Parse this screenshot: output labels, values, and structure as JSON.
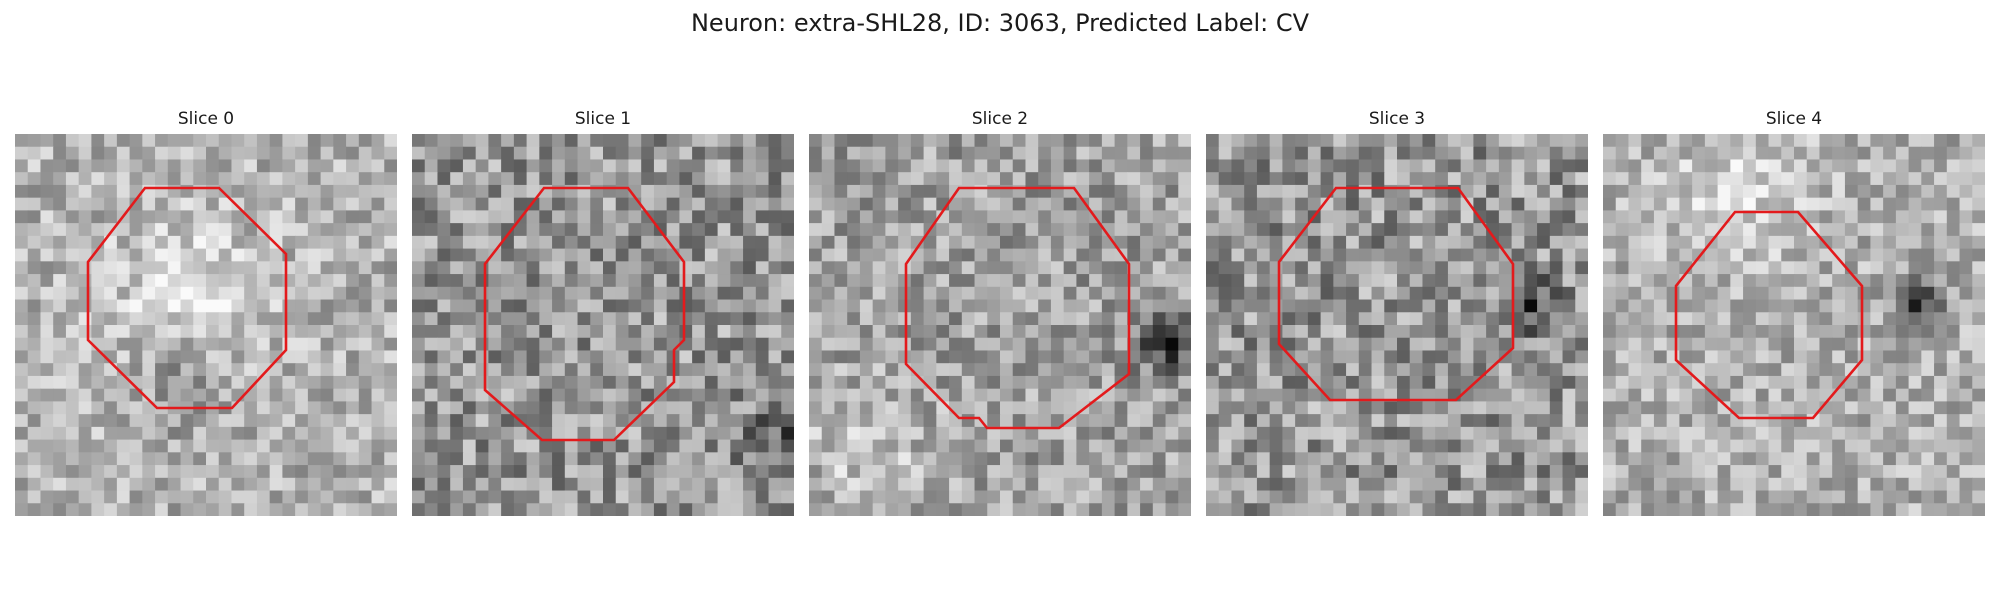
{
  "figure": {
    "title": "Neuron: extra-SHL28, ID: 3063, Predicted Label: CV",
    "contour_color": "#e31a1c",
    "colormap": "grayscale",
    "grid_size": 30
  },
  "panels": [
    {
      "title": "Slice 0",
      "seed": 11
    },
    {
      "title": "Slice 1",
      "seed": 23
    },
    {
      "title": "Slice 2",
      "seed": 37
    },
    {
      "title": "Slice 3",
      "seed": 51
    },
    {
      "title": "Slice 4",
      "seed": 67
    }
  ]
}
